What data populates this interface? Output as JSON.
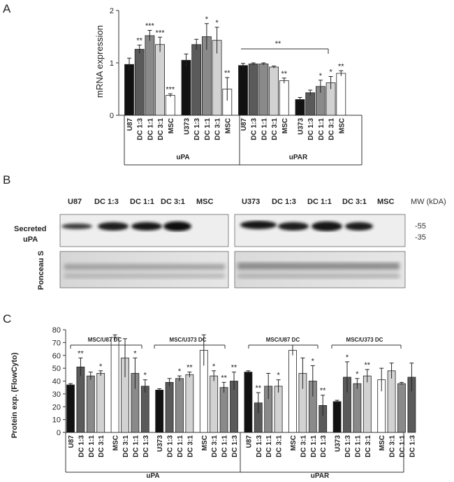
{
  "figure": {
    "panels": [
      "A",
      "B",
      "C"
    ]
  },
  "chart_data": [
    {
      "id": "A",
      "type": "bar",
      "ylabel": "mRNA expression",
      "ylim": [
        0,
        2
      ],
      "yticks": [
        "0",
        "1",
        "2"
      ],
      "categories": [
        "U87",
        "DC 1:3",
        "DC 1:1",
        "DC 3:1",
        "MSC",
        "U373",
        "DC 1:3",
        "DC 1:1",
        "DC 3:1",
        "MSC",
        "U87",
        "DC 1:3",
        "DC 1:1",
        "DC 3:1",
        "MSC",
        "U373",
        "DC 1:3",
        "DC 1:1",
        "DC 3:1",
        "MSC"
      ],
      "values": [
        0.97,
        1.26,
        1.52,
        1.35,
        0.38,
        1.05,
        1.35,
        1.5,
        1.43,
        0.5,
        0.95,
        0.98,
        0.98,
        0.92,
        0.66,
        0.3,
        0.43,
        0.55,
        0.62,
        0.8
      ],
      "errors": [
        0.12,
        0.08,
        0.1,
        0.14,
        0.03,
        0.12,
        0.1,
        0.25,
        0.25,
        0.22,
        0.04,
        0.02,
        0.02,
        0.02,
        0.05,
        0.04,
        0.05,
        0.12,
        0.12,
        0.05
      ],
      "colors": [
        "#111111",
        "#5a5a5a",
        "#8a8a8a",
        "#d2d2d2",
        "#ffffff",
        "#111111",
        "#5a5a5a",
        "#8a8a8a",
        "#d2d2d2",
        "#ffffff",
        "#111111",
        "#5a5a5a",
        "#8a8a8a",
        "#d2d2d2",
        "#ffffff",
        "#111111",
        "#5a5a5a",
        "#8a8a8a",
        "#d2d2d2",
        "#ffffff"
      ],
      "stars": [
        "",
        "**",
        "***",
        "***",
        "***",
        "",
        "",
        "*",
        "*",
        "**",
        "",
        "",
        "",
        "",
        "**",
        "",
        "",
        "*",
        "*",
        "**"
      ],
      "groups": [
        "uPA",
        "uPAR"
      ],
      "annotation": "**"
    },
    {
      "id": "C",
      "type": "bar",
      "ylabel": "Protein exp. (FlowCyto)",
      "ylim": [
        0,
        80
      ],
      "yticks": [
        "0",
        "10",
        "20",
        "30",
        "40",
        "50",
        "60",
        "70",
        "80"
      ],
      "categories": [
        "U87",
        "DC 1:3",
        "DC 1:1",
        "DC 3:1",
        "MSC",
        "DC 3:1",
        "DC 1:1",
        "DC 1:3",
        "U373",
        "DC 1:3",
        "DC 1:1",
        "DC 3:1",
        "MSC",
        "DC 3:1",
        "DC 1:1",
        "DC 1:3",
        "U87",
        "DC 1:3",
        "DC 1:1",
        "DC 3:1",
        "MSC",
        "DC 3:1",
        "DC 1:1",
        "DC 1:3",
        "U373",
        "DC 1:3",
        "DC 1:1",
        "DC 3:1",
        "MSC",
        "DC 3:1",
        "DC 1:1",
        "DC 1:3"
      ],
      "values": [
        37,
        51,
        44,
        46,
        74,
        58,
        46,
        36,
        33,
        39,
        42,
        45,
        64,
        44,
        35,
        40,
        47,
        23,
        36,
        36,
        64,
        46,
        40,
        21,
        24,
        43,
        38,
        44,
        41,
        48,
        38,
        43
      ],
      "errors": [
        1,
        7,
        3,
        2,
        2,
        15,
        12,
        5,
        1,
        3,
        2,
        2,
        12,
        4,
        4,
        7,
        1,
        8,
        10,
        5,
        4,
        12,
        12,
        8,
        1,
        12,
        4,
        5,
        9,
        6,
        1,
        11
      ],
      "colors": [
        "#111111",
        "#5a5a5a",
        "#8a8a8a",
        "#d2d2d2",
        "#ffffff",
        "#d2d2d2",
        "#8a8a8a",
        "#5a5a5a",
        "#111111",
        "#5a5a5a",
        "#8a8a8a",
        "#d2d2d2",
        "#ffffff",
        "#d2d2d2",
        "#8a8a8a",
        "#5a5a5a",
        "#111111",
        "#5a5a5a",
        "#8a8a8a",
        "#d2d2d2",
        "#ffffff",
        "#d2d2d2",
        "#8a8a8a",
        "#5a5a5a",
        "#111111",
        "#5a5a5a",
        "#8a8a8a",
        "#d2d2d2",
        "#ffffff",
        "#d2d2d2",
        "#8a8a8a",
        "#5a5a5a"
      ],
      "stars": [
        "",
        "**",
        "",
        "*",
        "",
        "",
        "*",
        "*",
        "",
        "",
        "*",
        "**",
        "",
        "*",
        "**",
        "**",
        "",
        "**",
        "",
        "*",
        "",
        "",
        "*",
        "**",
        "",
        "*",
        "*",
        "**",
        "",
        "",
        "",
        ""
      ],
      "groups": [
        "uPA",
        "uPAR"
      ],
      "brackets": [
        "MSC/U87 DC",
        "MSC/U373 DC",
        "MSC/U87 DC",
        "MSC/U373 DC"
      ]
    }
  ],
  "blot": {
    "lanes_left": [
      "U87",
      "DC 1:3",
      "DC 1:1",
      "DC 3:1",
      "MSC"
    ],
    "lanes_right": [
      "U373",
      "DC 1:3",
      "DC 1:1",
      "DC 3:1",
      "MSC"
    ],
    "mw_header": "MW (kDA)",
    "markers": [
      "-55",
      "-35"
    ],
    "row1_label_line1": "Secreted",
    "row1_label_line2": "uPA",
    "row2_label": "Ponceau S"
  }
}
